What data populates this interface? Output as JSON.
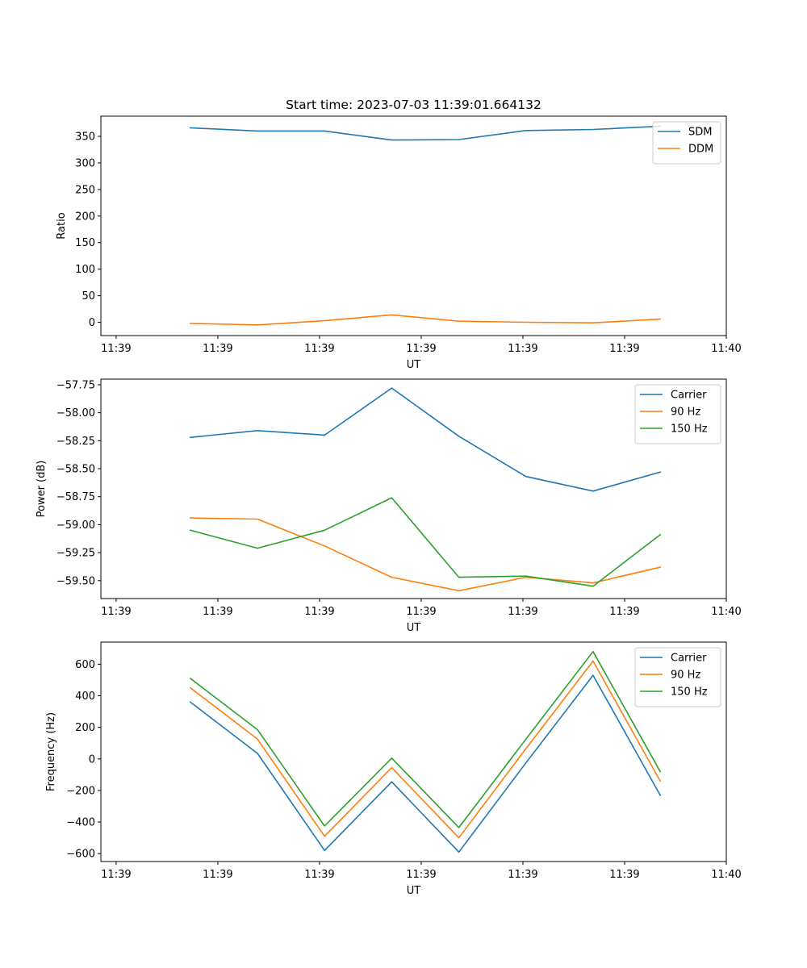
{
  "chart_data": [
    {
      "type": "line",
      "title": "Start time: 2023-07-03 11:39:01.664132",
      "xlabel": "UT",
      "ylabel": "Ratio",
      "legend": "top-right",
      "grid": false,
      "x": [
        0.73,
        1.39,
        2.05,
        2.71,
        3.37,
        4.03,
        4.69,
        5.35
      ],
      "xlim": [
        -0.15,
        6.0
      ],
      "xticks": [
        0,
        1,
        2,
        3,
        4,
        5,
        6
      ],
      "xticklabels": [
        "11:39",
        "11:39",
        "11:39",
        "11:39",
        "11:39",
        "11:39",
        "11:40"
      ],
      "ylim": [
        -25,
        388
      ],
      "yticks": [
        0,
        50,
        100,
        150,
        200,
        250,
        300,
        350
      ],
      "yticklabels": [
        "0",
        "50",
        "100",
        "150",
        "200",
        "250",
        "300",
        "350"
      ],
      "series": [
        {
          "name": "SDM",
          "color": "#1f77b4",
          "values": [
            366,
            360,
            360,
            343,
            344,
            361,
            363,
            369
          ]
        },
        {
          "name": "DDM",
          "color": "#ff7f0e",
          "values": [
            -2,
            -5,
            3,
            14,
            2,
            0,
            -1,
            6
          ]
        }
      ]
    },
    {
      "type": "line",
      "title": "",
      "xlabel": "UT",
      "ylabel": "Power (dB)",
      "legend": "top-right",
      "grid": false,
      "x": [
        0.73,
        1.39,
        2.05,
        2.71,
        3.37,
        4.03,
        4.69,
        5.35
      ],
      "xlim": [
        -0.15,
        6.0
      ],
      "xticks": [
        0,
        1,
        2,
        3,
        4,
        5,
        6
      ],
      "xticklabels": [
        "11:39",
        "11:39",
        "11:39",
        "11:39",
        "11:39",
        "11:39",
        "11:40"
      ],
      "ylim": [
        -59.66,
        -57.7
      ],
      "yticks": [
        -57.75,
        -58.0,
        -58.25,
        -58.5,
        -58.75,
        -59.0,
        -59.25,
        -59.5
      ],
      "yticklabels": [
        "−57.75",
        "−58.00",
        "−58.25",
        "−58.50",
        "−58.75",
        "−59.00",
        "−59.25",
        "−59.50"
      ],
      "series": [
        {
          "name": "Carrier",
          "color": "#1f77b4",
          "values": [
            -58.22,
            -58.16,
            -58.2,
            -57.78,
            -58.21,
            -58.57,
            -58.7,
            -58.53
          ]
        },
        {
          "name": "90 Hz",
          "color": "#ff7f0e",
          "values": [
            -58.94,
            -58.95,
            -59.19,
            -59.47,
            -59.59,
            -59.47,
            -59.52,
            -59.38
          ]
        },
        {
          "name": "150 Hz",
          "color": "#2ca02c",
          "values": [
            -59.05,
            -59.21,
            -59.05,
            -58.76,
            -59.47,
            -59.46,
            -59.55,
            -59.09
          ]
        }
      ]
    },
    {
      "type": "line",
      "title": "",
      "xlabel": "UT",
      "ylabel": "Frequency (Hz)",
      "legend": "top-right",
      "grid": false,
      "x": [
        0.73,
        1.39,
        2.05,
        2.71,
        3.37,
        4.03,
        4.69,
        5.35
      ],
      "xlim": [
        -0.15,
        6.0
      ],
      "xticks": [
        0,
        1,
        2,
        3,
        4,
        5,
        6
      ],
      "xticklabels": [
        "11:39",
        "11:39",
        "11:39",
        "11:39",
        "11:39",
        "11:39",
        "11:40"
      ],
      "ylim": [
        -650,
        740
      ],
      "yticks": [
        600,
        400,
        200,
        0,
        -200,
        -400,
        -600
      ],
      "yticklabels": [
        "600",
        "400",
        "200",
        "0",
        "−200",
        "−400",
        "−600"
      ],
      "series": [
        {
          "name": "Carrier",
          "color": "#1f77b4",
          "values": [
            360,
            35,
            -580,
            -145,
            -590,
            -25,
            530,
            -230
          ]
        },
        {
          "name": "90 Hz",
          "color": "#ff7f0e",
          "values": [
            450,
            125,
            -490,
            -55,
            -500,
            65,
            620,
            -140
          ]
        },
        {
          "name": "150 Hz",
          "color": "#2ca02c",
          "values": [
            510,
            185,
            -425,
            5,
            -435,
            125,
            680,
            -80
          ]
        }
      ]
    }
  ]
}
